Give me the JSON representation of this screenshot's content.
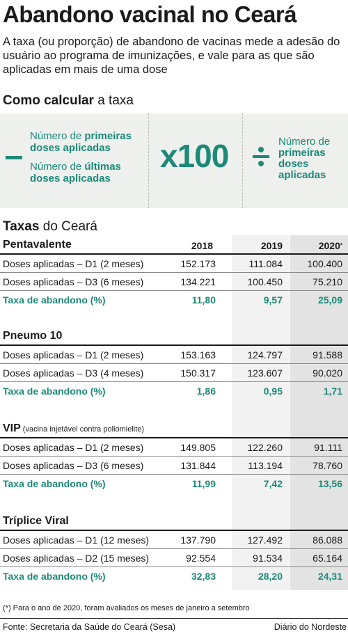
{
  "title": "Abandono vacinal no Ceará",
  "intro": "A taxa (ou proporção) de abandono de vacinas mede a adesão do usuário ao programa de imunizações, e vale para as que são aplicadas em mais de uma dose",
  "calc": {
    "title_bold": "Como calcular",
    "title_rest": " a taxa",
    "line1_a": "Número de ",
    "line1_b": "primeiras",
    "line1_c": "doses aplicadas",
    "line2_a": "Número de ",
    "line2_b": "últimas",
    "line2_c": "doses aplicadas",
    "multiplier": "x100",
    "div_a": "Número de",
    "div_b": "primeiras doses aplicadas"
  },
  "taxas": {
    "title_bold": "Taxas",
    "title_rest": " do Ceará"
  },
  "years": [
    "2018",
    "2019",
    "2020",
    "*"
  ],
  "sections": [
    {
      "name": "Pentavalente",
      "rows": [
        {
          "label": "Doses aplicadas – D1 (2 meses)",
          "values": [
            "152.173",
            "111.084",
            "100.400"
          ]
        },
        {
          "label": "Doses aplicadas – D3 (6 meses)",
          "values": [
            "134.221",
            "100.450",
            "75.210"
          ]
        },
        {
          "label": "Taxa de abandono (%)",
          "values": [
            "11,80",
            "9,57",
            "25,09"
          ]
        }
      ]
    },
    {
      "name": "Pneumo 10",
      "rows": [
        {
          "label": "Doses aplicadas – D1 (2 meses)",
          "values": [
            "153.163",
            "124.797",
            "91.588"
          ]
        },
        {
          "label": "Doses aplicadas – D3 (4 meses)",
          "values": [
            "150.317",
            "123.607",
            "90.020"
          ]
        },
        {
          "label": "Taxa de abandono (%)",
          "values": [
            "1,86",
            "0,95",
            "1,71"
          ]
        }
      ]
    },
    {
      "name": "VIP",
      "note": "(vacina injetável contra poliomielite)",
      "rows": [
        {
          "label": "Doses aplicadas – D1 (2 meses)",
          "values": [
            "149.805",
            "122.260",
            "91.111"
          ]
        },
        {
          "label": "Doses aplicadas – D3 (6 meses)",
          "values": [
            "131.844",
            "113.194",
            "78.760"
          ]
        },
        {
          "label": "Taxa de abandono (%)",
          "values": [
            "11,99",
            "7,42",
            "13,56"
          ]
        }
      ]
    },
    {
      "name": "Tríplice Viral",
      "rows": [
        {
          "label": "Doses aplicadas – D1 (12 meses)",
          "values": [
            "137.790",
            "127.492",
            "86.088"
          ]
        },
        {
          "label": "Doses aplicadas – D2 (15 meses)",
          "values": [
            "92.554",
            "91.534",
            "65.164"
          ]
        },
        {
          "label": "Taxa de abandono (%)",
          "values": [
            "32,83",
            "28,20",
            "24,31"
          ]
        }
      ]
    }
  ],
  "footnote": "(*) Para o ano de 2020, foram avaliados os meses de janeiro a setembro",
  "source": "Fonte: Secretaria da Saúde do Ceará (Sesa)",
  "credit": "Diário do Nordeste",
  "colors": {
    "accent": "#1d8a78",
    "panel": "#eef0ee",
    "col2019": "#f1f2f1",
    "col2020": "#e2e3e2"
  }
}
